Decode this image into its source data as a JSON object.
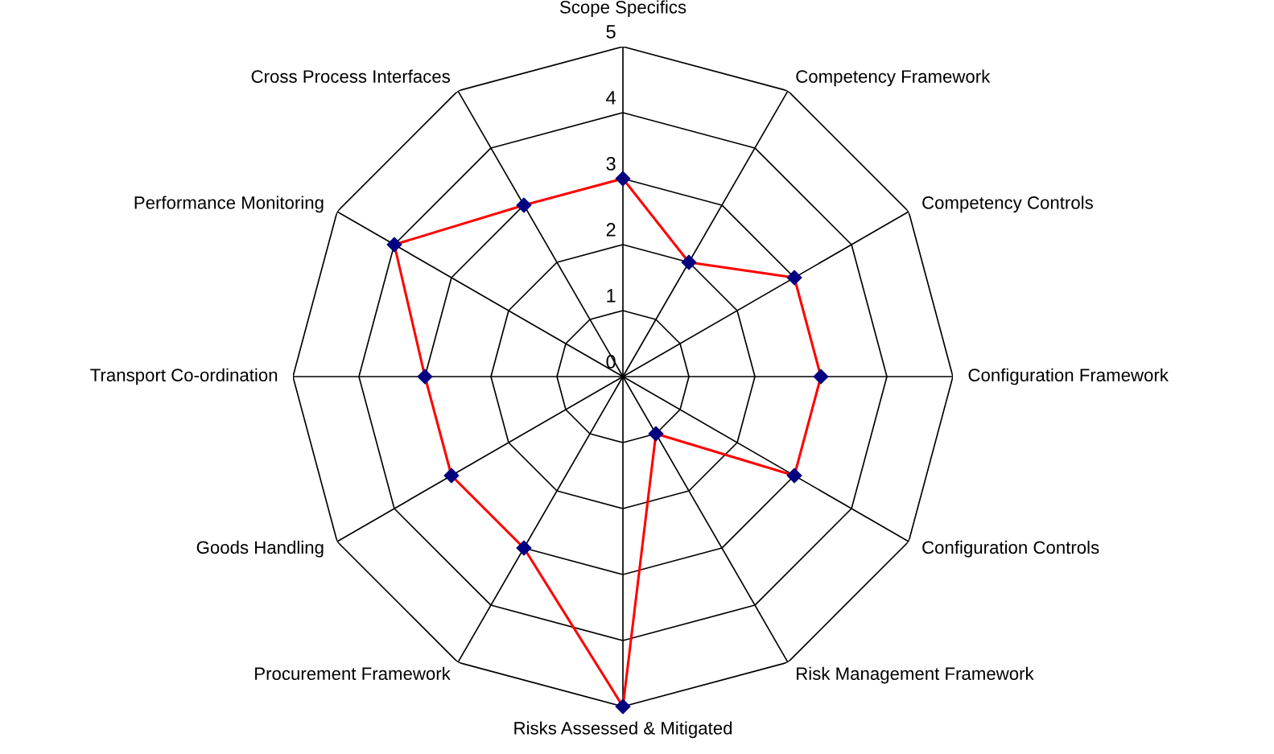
{
  "chart_data": {
    "type": "radar",
    "categories": [
      "Scope Specifics",
      "Competency Framework",
      "Competency Controls",
      "Configuration Framework",
      "Configuration Controls",
      "Risk Management Framework",
      "Risks Assessed & Mitigated",
      "Procurement Framework",
      "Goods Handling",
      "Transport Co-ordination",
      "Performance Monitoring",
      "Cross Process Interfaces"
    ],
    "series": [
      {
        "color": "#ff0000",
        "colors": [
          "#000080",
          "#000080",
          "#000080",
          "#000080",
          "#000080",
          "#000080",
          "#000080",
          "#000080",
          "#000080",
          "#000080",
          "#000080",
          "#000080"
        ],
        "values": [
          3,
          2,
          3,
          3,
          3,
          1,
          5,
          3,
          3,
          3,
          4,
          3
        ]
      }
    ],
    "ylim": [
      0,
      5
    ],
    "yticks": [
      0,
      1,
      2,
      3,
      4,
      5
    ],
    "grid": true,
    "marker": "diamond",
    "line_style": "solid",
    "legend": false
  }
}
